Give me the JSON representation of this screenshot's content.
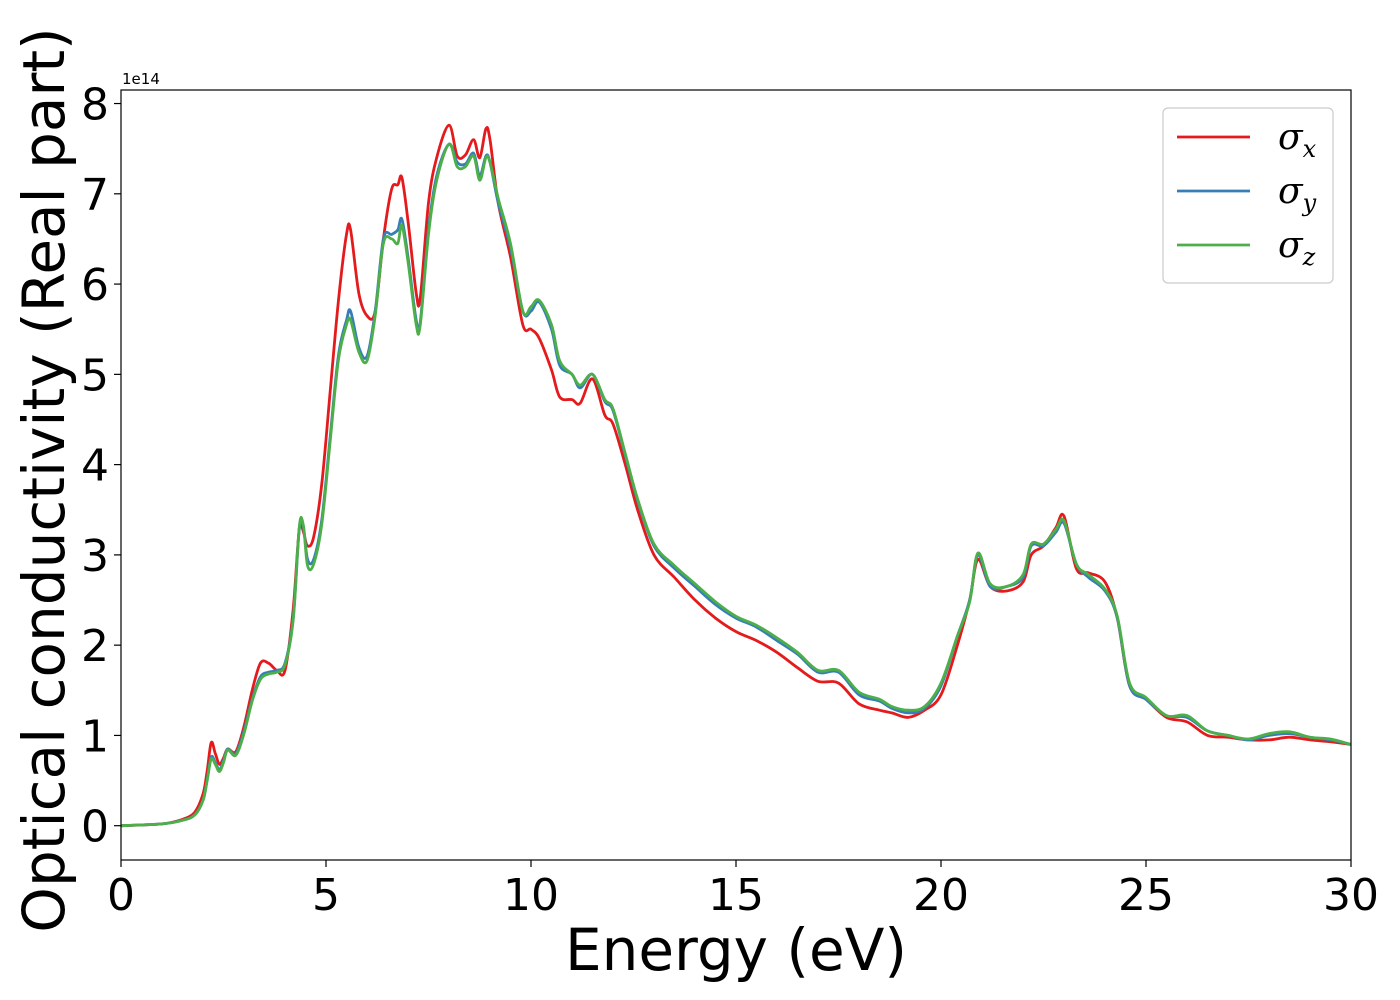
{
  "chart_data": {
    "type": "line",
    "title": "",
    "xlabel": "Energy (eV)",
    "ylabel": "Optical conductivity (Real part)",
    "y_offset_label": "1e14",
    "y_scale_factor": 100000000000000.0,
    "xlim": [
      0,
      30
    ],
    "ylim": [
      -0.38,
      8.15
    ],
    "xticks": [
      0,
      5,
      10,
      15,
      20,
      25,
      30
    ],
    "xtick_labels": [
      "0",
      "5",
      "10",
      "15",
      "20",
      "25",
      "30"
    ],
    "yticks": [
      0,
      1,
      2,
      3,
      4,
      5,
      6,
      7,
      8
    ],
    "ytick_labels": [
      "0",
      "1",
      "2",
      "3",
      "4",
      "5",
      "6",
      "7",
      "8"
    ],
    "grid": false,
    "legend_position": "top-right",
    "series": [
      {
        "name": "σ",
        "subscript": "x",
        "color": "#e41a1c",
        "x": [
          0,
          1,
          1.5,
          1.8,
          2.0,
          2.1,
          2.2,
          2.3,
          2.4,
          2.5,
          2.6,
          2.8,
          3.0,
          3.2,
          3.4,
          3.6,
          3.8,
          4.0,
          4.2,
          4.35,
          4.45,
          4.55,
          4.7,
          4.9,
          5.1,
          5.3,
          5.5,
          5.6,
          5.8,
          6.0,
          6.2,
          6.4,
          6.6,
          6.75,
          6.85,
          7.0,
          7.2,
          7.3,
          7.5,
          7.7,
          8.0,
          8.2,
          8.4,
          8.6,
          8.75,
          8.9,
          9.0,
          9.2,
          9.5,
          9.8,
          10.0,
          10.2,
          10.5,
          10.7,
          11.0,
          11.2,
          11.5,
          11.8,
          12.0,
          12.3,
          12.6,
          13.0,
          13.5,
          14.0,
          14.5,
          15.0,
          15.5,
          16.0,
          16.5,
          17.0,
          17.5,
          18.0,
          18.5,
          18.8,
          19.2,
          19.6,
          20.0,
          20.4,
          20.7,
          20.9,
          21.2,
          21.6,
          22.0,
          22.2,
          22.5,
          22.8,
          23.0,
          23.3,
          23.6,
          24.0,
          24.3,
          24.6,
          25.0,
          25.5,
          26.0,
          26.5,
          27.0,
          27.5,
          28.0,
          28.5,
          29.0,
          29.5,
          30.0
        ],
        "y": [
          0,
          0.02,
          0.07,
          0.15,
          0.35,
          0.6,
          0.92,
          0.8,
          0.68,
          0.75,
          0.85,
          0.82,
          1.1,
          1.5,
          1.8,
          1.8,
          1.72,
          1.72,
          2.4,
          3.3,
          3.25,
          3.1,
          3.2,
          3.8,
          4.8,
          5.8,
          6.55,
          6.6,
          5.9,
          5.65,
          5.7,
          6.5,
          7.05,
          7.1,
          7.18,
          6.7,
          5.9,
          5.85,
          6.9,
          7.4,
          7.76,
          7.42,
          7.43,
          7.6,
          7.4,
          7.72,
          7.6,
          6.9,
          6.3,
          5.55,
          5.5,
          5.4,
          5.05,
          4.75,
          4.72,
          4.68,
          4.95,
          4.55,
          4.45,
          4.0,
          3.5,
          3.0,
          2.75,
          2.5,
          2.3,
          2.15,
          2.05,
          1.92,
          1.75,
          1.6,
          1.58,
          1.35,
          1.28,
          1.25,
          1.2,
          1.28,
          1.45,
          2.0,
          2.5,
          2.95,
          2.65,
          2.6,
          2.7,
          3.0,
          3.1,
          3.3,
          3.43,
          2.85,
          2.8,
          2.7,
          2.3,
          1.55,
          1.4,
          1.2,
          1.15,
          1.0,
          0.98,
          0.95,
          0.95,
          0.98,
          0.95,
          0.93,
          0.9
        ]
      },
      {
        "name": "σ",
        "subscript": "y",
        "color": "#377eb8",
        "x": [
          0,
          1,
          1.5,
          1.8,
          2.0,
          2.1,
          2.2,
          2.3,
          2.4,
          2.5,
          2.6,
          2.8,
          3.0,
          3.2,
          3.4,
          3.6,
          3.8,
          4.0,
          4.2,
          4.35,
          4.45,
          4.55,
          4.7,
          4.9,
          5.1,
          5.3,
          5.5,
          5.6,
          5.8,
          6.0,
          6.2,
          6.4,
          6.6,
          6.75,
          6.85,
          7.0,
          7.2,
          7.3,
          7.5,
          7.7,
          8.0,
          8.2,
          8.4,
          8.6,
          8.75,
          8.9,
          9.0,
          9.2,
          9.5,
          9.8,
          10.0,
          10.2,
          10.5,
          10.7,
          11.0,
          11.2,
          11.5,
          11.8,
          12.0,
          12.3,
          12.6,
          13.0,
          13.5,
          14.0,
          14.5,
          15.0,
          15.5,
          16.0,
          16.5,
          17.0,
          17.5,
          18.0,
          18.5,
          18.8,
          19.2,
          19.6,
          20.0,
          20.4,
          20.7,
          20.9,
          21.2,
          21.6,
          22.0,
          22.2,
          22.5,
          22.8,
          23.0,
          23.3,
          23.6,
          24.0,
          24.3,
          24.6,
          25.0,
          25.5,
          26.0,
          26.5,
          27.0,
          27.5,
          28.0,
          28.5,
          29.0,
          29.5,
          30.0
        ],
        "y": [
          0,
          0.02,
          0.06,
          0.12,
          0.28,
          0.5,
          0.76,
          0.7,
          0.62,
          0.72,
          0.85,
          0.8,
          1.05,
          1.4,
          1.65,
          1.7,
          1.72,
          1.8,
          2.3,
          3.3,
          3.3,
          2.95,
          2.95,
          3.4,
          4.3,
          5.2,
          5.6,
          5.7,
          5.3,
          5.2,
          5.7,
          6.5,
          6.55,
          6.6,
          6.72,
          6.3,
          5.6,
          5.58,
          6.6,
          7.2,
          7.55,
          7.35,
          7.33,
          7.45,
          7.2,
          7.42,
          7.35,
          6.9,
          6.4,
          5.7,
          5.7,
          5.8,
          5.5,
          5.1,
          5.0,
          4.85,
          5.0,
          4.7,
          4.6,
          4.1,
          3.6,
          3.1,
          2.85,
          2.65,
          2.45,
          2.3,
          2.2,
          2.05,
          1.9,
          1.7,
          1.7,
          1.45,
          1.38,
          1.3,
          1.25,
          1.3,
          1.55,
          2.1,
          2.5,
          3.0,
          2.65,
          2.65,
          2.75,
          3.1,
          3.1,
          3.25,
          3.35,
          2.9,
          2.75,
          2.6,
          2.3,
          1.55,
          1.4,
          1.22,
          1.2,
          1.05,
          1.0,
          0.95,
          1.0,
          1.02,
          0.98,
          0.95,
          0.9
        ]
      },
      {
        "name": "σ",
        "subscript": "z",
        "color": "#4daf4a",
        "x": [
          0,
          1,
          1.5,
          1.8,
          2.0,
          2.1,
          2.2,
          2.3,
          2.4,
          2.5,
          2.6,
          2.8,
          3.0,
          3.2,
          3.4,
          3.6,
          3.8,
          4.0,
          4.2,
          4.35,
          4.45,
          4.55,
          4.7,
          4.9,
          5.1,
          5.3,
          5.5,
          5.6,
          5.8,
          6.0,
          6.2,
          6.4,
          6.6,
          6.75,
          6.85,
          7.0,
          7.2,
          7.3,
          7.5,
          7.7,
          8.0,
          8.2,
          8.4,
          8.6,
          8.75,
          8.9,
          9.0,
          9.2,
          9.5,
          9.8,
          10.0,
          10.2,
          10.5,
          10.7,
          11.0,
          11.2,
          11.5,
          11.8,
          12.0,
          12.3,
          12.6,
          13.0,
          13.5,
          14.0,
          14.5,
          15.0,
          15.5,
          16.0,
          16.5,
          17.0,
          17.5,
          18.0,
          18.5,
          18.8,
          19.2,
          19.6,
          20.0,
          20.4,
          20.7,
          20.9,
          21.2,
          21.6,
          22.0,
          22.2,
          22.5,
          22.8,
          23.0,
          23.3,
          23.6,
          24.0,
          24.3,
          24.6,
          25.0,
          25.5,
          26.0,
          26.5,
          27.0,
          27.5,
          28.0,
          28.5,
          29.0,
          29.5,
          30.0
        ],
        "y": [
          0,
          0.02,
          0.06,
          0.12,
          0.28,
          0.5,
          0.74,
          0.68,
          0.6,
          0.7,
          0.84,
          0.78,
          1.02,
          1.38,
          1.62,
          1.68,
          1.7,
          1.78,
          2.28,
          3.32,
          3.32,
          2.88,
          2.9,
          3.35,
          4.25,
          5.15,
          5.55,
          5.6,
          5.25,
          5.15,
          5.65,
          6.45,
          6.5,
          6.45,
          6.65,
          6.25,
          5.55,
          5.55,
          6.55,
          7.15,
          7.55,
          7.3,
          7.3,
          7.42,
          7.15,
          7.4,
          7.35,
          6.95,
          6.45,
          5.7,
          5.75,
          5.82,
          5.55,
          5.15,
          5.0,
          4.88,
          5.0,
          4.72,
          4.62,
          4.12,
          3.62,
          3.12,
          2.88,
          2.68,
          2.48,
          2.32,
          2.22,
          2.08,
          1.92,
          1.72,
          1.72,
          1.48,
          1.4,
          1.32,
          1.28,
          1.32,
          1.58,
          2.1,
          2.48,
          3.02,
          2.68,
          2.65,
          2.78,
          3.12,
          3.12,
          3.28,
          3.38,
          2.9,
          2.78,
          2.62,
          2.32,
          1.58,
          1.42,
          1.22,
          1.22,
          1.05,
          1.0,
          0.96,
          1.02,
          1.04,
          0.98,
          0.96,
          0.9
        ]
      }
    ]
  }
}
